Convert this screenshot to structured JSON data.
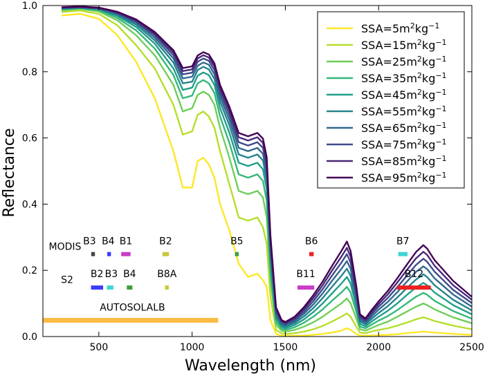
{
  "chart_data": {
    "type": "line",
    "title": "",
    "xlabel": "Wavelength (nm)",
    "ylabel": "Reflectance",
    "xlim": [
      200,
      2500
    ],
    "ylim": [
      0.0,
      1.0
    ],
    "xticks": [
      500,
      1000,
      1500,
      2000,
      2500
    ],
    "yticks": [
      0.0,
      0.2,
      0.4,
      0.6,
      0.8,
      1.0
    ],
    "xtick_labels": [
      "500",
      "1000",
      "1500",
      "2000",
      "2500"
    ],
    "ytick_labels": [
      "0.0",
      "0.2",
      "0.4",
      "0.6",
      "0.8",
      "1.0"
    ],
    "legend_position": "top-right",
    "series_x": [
      300,
      400,
      500,
      600,
      700,
      800,
      900,
      950,
      1000,
      1030,
      1060,
      1090,
      1120,
      1150,
      1200,
      1250,
      1300,
      1350,
      1380,
      1400,
      1420,
      1450,
      1480,
      1500,
      1550,
      1600,
      1650,
      1700,
      1750,
      1800,
      1830,
      1850,
      1880,
      1900,
      1930,
      1960,
      2000,
      2050,
      2100,
      2150,
      2200,
      2240,
      2260,
      2300,
      2400,
      2500
    ],
    "series": [
      {
        "name": "SSA=5m²kg⁻¹",
        "color": "#fde725",
        "values": [
          0.97,
          0.975,
          0.96,
          0.91,
          0.83,
          0.72,
          0.56,
          0.45,
          0.45,
          0.53,
          0.54,
          0.52,
          0.48,
          0.4,
          0.32,
          0.22,
          0.18,
          0.19,
          0.17,
          0.15,
          0.05,
          0.008,
          0.003,
          0.002,
          0.002,
          0.003,
          0.005,
          0.008,
          0.012,
          0.018,
          0.025,
          0.02,
          0.008,
          0.003,
          0.002,
          0.003,
          0.004,
          0.005,
          0.007,
          0.01,
          0.013,
          0.015,
          0.014,
          0.012,
          0.008,
          0.005
        ]
      },
      {
        "name": "SSA=15m²kg⁻¹",
        "color": "#b5de2b",
        "values": [
          0.98,
          0.985,
          0.975,
          0.94,
          0.88,
          0.81,
          0.7,
          0.61,
          0.62,
          0.67,
          0.68,
          0.665,
          0.63,
          0.56,
          0.46,
          0.36,
          0.35,
          0.36,
          0.33,
          0.28,
          0.12,
          0.02,
          0.01,
          0.008,
          0.01,
          0.015,
          0.022,
          0.032,
          0.045,
          0.06,
          0.07,
          0.06,
          0.03,
          0.012,
          0.01,
          0.015,
          0.02,
          0.025,
          0.033,
          0.042,
          0.052,
          0.058,
          0.055,
          0.047,
          0.033,
          0.022
        ]
      },
      {
        "name": "SSA=25m²kg⁻¹",
        "color": "#6ece58",
        "values": [
          0.985,
          0.99,
          0.982,
          0.955,
          0.91,
          0.85,
          0.76,
          0.68,
          0.69,
          0.73,
          0.74,
          0.73,
          0.7,
          0.63,
          0.54,
          0.44,
          0.43,
          0.44,
          0.42,
          0.36,
          0.17,
          0.035,
          0.018,
          0.015,
          0.02,
          0.03,
          0.043,
          0.06,
          0.08,
          0.1,
          0.115,
          0.1,
          0.055,
          0.022,
          0.018,
          0.025,
          0.035,
          0.045,
          0.06,
          0.075,
          0.09,
          0.1,
          0.095,
          0.082,
          0.058,
          0.04
        ]
      },
      {
        "name": "SSA=35m²kg⁻¹",
        "color": "#35b779",
        "values": [
          0.988,
          0.992,
          0.986,
          0.962,
          0.925,
          0.87,
          0.79,
          0.72,
          0.728,
          0.765,
          0.775,
          0.765,
          0.735,
          0.665,
          0.585,
          0.49,
          0.48,
          0.49,
          0.47,
          0.41,
          0.2,
          0.045,
          0.024,
          0.02,
          0.028,
          0.042,
          0.06,
          0.082,
          0.108,
          0.133,
          0.15,
          0.133,
          0.075,
          0.03,
          0.025,
          0.035,
          0.048,
          0.062,
          0.08,
          0.1,
          0.12,
          0.132,
          0.126,
          0.108,
          0.077,
          0.054
        ]
      },
      {
        "name": "SSA=45m²kg⁻¹",
        "color": "#1f9e89",
        "values": [
          0.99,
          0.993,
          0.988,
          0.968,
          0.935,
          0.885,
          0.81,
          0.745,
          0.752,
          0.788,
          0.798,
          0.79,
          0.76,
          0.69,
          0.615,
          0.525,
          0.515,
          0.525,
          0.505,
          0.445,
          0.225,
          0.055,
          0.03,
          0.025,
          0.035,
          0.052,
          0.074,
          0.1,
          0.13,
          0.16,
          0.18,
          0.16,
          0.092,
          0.038,
          0.031,
          0.044,
          0.06,
          0.078,
          0.1,
          0.125,
          0.148,
          0.162,
          0.155,
          0.133,
          0.095,
          0.067
        ]
      },
      {
        "name": "SSA=55m²kg⁻¹",
        "color": "#26828e",
        "values": [
          0.991,
          0.994,
          0.99,
          0.972,
          0.942,
          0.895,
          0.828,
          0.765,
          0.77,
          0.805,
          0.815,
          0.807,
          0.778,
          0.71,
          0.638,
          0.55,
          0.54,
          0.55,
          0.532,
          0.472,
          0.245,
          0.062,
          0.035,
          0.03,
          0.041,
          0.061,
          0.086,
          0.116,
          0.15,
          0.183,
          0.205,
          0.183,
          0.106,
          0.045,
          0.037,
          0.052,
          0.071,
          0.092,
          0.118,
          0.146,
          0.172,
          0.188,
          0.18,
          0.155,
          0.111,
          0.079
        ]
      },
      {
        "name": "SSA=65m²kg⁻¹",
        "color": "#31688e",
        "values": [
          0.992,
          0.995,
          0.991,
          0.975,
          0.948,
          0.903,
          0.84,
          0.78,
          0.785,
          0.818,
          0.828,
          0.821,
          0.792,
          0.725,
          0.655,
          0.57,
          0.56,
          0.57,
          0.552,
          0.493,
          0.262,
          0.069,
          0.039,
          0.034,
          0.046,
          0.069,
          0.097,
          0.13,
          0.168,
          0.204,
          0.228,
          0.204,
          0.119,
          0.051,
          0.042,
          0.059,
          0.081,
          0.105,
          0.134,
          0.165,
          0.195,
          0.212,
          0.204,
          0.176,
          0.127,
          0.09
        ]
      },
      {
        "name": "SSA=75m²kg⁻¹",
        "color": "#3e4989",
        "values": [
          0.993,
          0.995,
          0.992,
          0.977,
          0.952,
          0.91,
          0.85,
          0.792,
          0.797,
          0.83,
          0.84,
          0.833,
          0.805,
          0.738,
          0.67,
          0.587,
          0.577,
          0.587,
          0.57,
          0.512,
          0.278,
          0.076,
          0.043,
          0.038,
          0.051,
          0.076,
          0.107,
          0.143,
          0.184,
          0.223,
          0.249,
          0.223,
          0.131,
          0.057,
          0.047,
          0.066,
          0.09,
          0.117,
          0.149,
          0.183,
          0.216,
          0.235,
          0.226,
          0.196,
          0.141,
          0.101
        ]
      },
      {
        "name": "SSA=85m²kg⁻¹",
        "color": "#482878",
        "values": [
          0.994,
          0.996,
          0.993,
          0.979,
          0.955,
          0.915,
          0.858,
          0.802,
          0.807,
          0.84,
          0.85,
          0.843,
          0.816,
          0.75,
          0.683,
          0.602,
          0.592,
          0.602,
          0.585,
          0.528,
          0.292,
          0.082,
          0.047,
          0.041,
          0.056,
          0.083,
          0.116,
          0.155,
          0.199,
          0.241,
          0.268,
          0.241,
          0.142,
          0.062,
          0.051,
          0.072,
          0.098,
          0.128,
          0.163,
          0.2,
          0.236,
          0.256,
          0.247,
          0.214,
          0.155,
          0.111
        ]
      },
      {
        "name": "SSA=95m²kg⁻¹",
        "color": "#440154",
        "values": [
          0.995,
          0.997,
          0.994,
          0.981,
          0.958,
          0.92,
          0.865,
          0.811,
          0.816,
          0.849,
          0.859,
          0.852,
          0.825,
          0.76,
          0.694,
          0.615,
          0.605,
          0.615,
          0.598,
          0.542,
          0.305,
          0.088,
          0.05,
          0.044,
          0.06,
          0.089,
          0.125,
          0.166,
          0.213,
          0.258,
          0.287,
          0.258,
          0.153,
          0.067,
          0.055,
          0.078,
          0.106,
          0.138,
          0.176,
          0.216,
          0.255,
          0.276,
          0.266,
          0.231,
          0.168,
          0.12
        ]
      }
    ],
    "legend_entries": [
      {
        "prefix": "SSA=",
        "num": "5",
        "unit": "m",
        "exp1": "2",
        "kg": "kg",
        "exp2": "−1"
      },
      {
        "prefix": "SSA=",
        "num": "15",
        "unit": "m",
        "exp1": "2",
        "kg": "kg",
        "exp2": "−1"
      },
      {
        "prefix": "SSA=",
        "num": "25",
        "unit": "m",
        "exp1": "2",
        "kg": "kg",
        "exp2": "−1"
      },
      {
        "prefix": "SSA=",
        "num": "35",
        "unit": "m",
        "exp1": "2",
        "kg": "kg",
        "exp2": "−1"
      },
      {
        "prefix": "SSA=",
        "num": "45",
        "unit": "m",
        "exp1": "2",
        "kg": "kg",
        "exp2": "−1"
      },
      {
        "prefix": "SSA=",
        "num": "55",
        "unit": "m",
        "exp1": "2",
        "kg": "kg",
        "exp2": "−1"
      },
      {
        "prefix": "SSA=",
        "num": "65",
        "unit": "m",
        "exp1": "2",
        "kg": "kg",
        "exp2": "−1"
      },
      {
        "prefix": "SSA=",
        "num": "75",
        "unit": "m",
        "exp1": "2",
        "kg": "kg",
        "exp2": "−1"
      },
      {
        "prefix": "SSA=",
        "num": "85",
        "unit": "m",
        "exp1": "2",
        "kg": "kg",
        "exp2": "−1"
      },
      {
        "prefix": "SSA=",
        "num": "95",
        "unit": "m",
        "exp1": "2",
        "kg": "kg",
        "exp2": "−1"
      }
    ],
    "instrument_labels": [
      "MODIS",
      "S2"
    ],
    "bands": [
      {
        "instrument": "MODIS",
        "name": "B3",
        "start": 459,
        "end": 479,
        "color": "#444444",
        "level": 0.249
      },
      {
        "instrument": "MODIS",
        "name": "B4",
        "start": 545,
        "end": 565,
        "color": "#3a3aff",
        "level": 0.249
      },
      {
        "instrument": "MODIS",
        "name": "B1",
        "start": 620,
        "end": 670,
        "color": "#c83cc8",
        "level": 0.249
      },
      {
        "instrument": "MODIS",
        "name": "B2",
        "start": 841,
        "end": 876,
        "color": "#c8c83c",
        "level": 0.249
      },
      {
        "instrument": "MODIS",
        "name": "B5",
        "start": 1230,
        "end": 1250,
        "color": "#3c9f3c",
        "level": 0.249
      },
      {
        "instrument": "MODIS",
        "name": "B6",
        "start": 1628,
        "end": 1652,
        "color": "#ee2020",
        "level": 0.249
      },
      {
        "instrument": "MODIS",
        "name": "B7",
        "start": 2105,
        "end": 2155,
        "color": "#3fd5d5",
        "level": 0.249
      },
      {
        "instrument": "S2",
        "name": "B2",
        "start": 458,
        "end": 523,
        "color": "#3a3aff",
        "level": 0.148
      },
      {
        "instrument": "S2",
        "name": "B3",
        "start": 543,
        "end": 578,
        "color": "#3fd5d5",
        "level": 0.148
      },
      {
        "instrument": "S2",
        "name": "B4",
        "start": 650,
        "end": 680,
        "color": "#3c9f3c",
        "level": 0.148
      },
      {
        "instrument": "S2",
        "name": "B8A",
        "start": 855,
        "end": 875,
        "color": "#c8c83c",
        "level": 0.148
      },
      {
        "instrument": "S2",
        "name": "B11",
        "start": 1565,
        "end": 1655,
        "color": "#c83cc8",
        "level": 0.148
      },
      {
        "instrument": "S2",
        "name": "B12",
        "start": 2100,
        "end": 2280,
        "color": "#ee2020",
        "level": 0.148
      }
    ],
    "band_labels": [
      {
        "text": "B3",
        "x": 450,
        "level": 0.279
      },
      {
        "text": "B4",
        "x": 550,
        "level": 0.279
      },
      {
        "text": "B1",
        "x": 645,
        "level": 0.279
      },
      {
        "text": "B2",
        "x": 858,
        "level": 0.279
      },
      {
        "text": "B5",
        "x": 1240,
        "level": 0.279
      },
      {
        "text": "B6",
        "x": 1640,
        "level": 0.279
      },
      {
        "text": "B7",
        "x": 2130,
        "level": 0.279
      },
      {
        "text": "B2",
        "x": 490,
        "level": 0.18
      },
      {
        "text": "B3",
        "x": 567,
        "level": 0.18
      },
      {
        "text": "B4",
        "x": 665,
        "level": 0.18
      },
      {
        "text": "B8A",
        "x": 865,
        "level": 0.18
      },
      {
        "text": "B11",
        "x": 1610,
        "level": 0.18
      },
      {
        "text": "B12",
        "x": 2190,
        "level": 0.18
      }
    ],
    "autosolalb": {
      "label": "AUTOSOLALB",
      "start": 200,
      "end": 1140,
      "level": 0.049,
      "color": "#fbbc45"
    }
  }
}
